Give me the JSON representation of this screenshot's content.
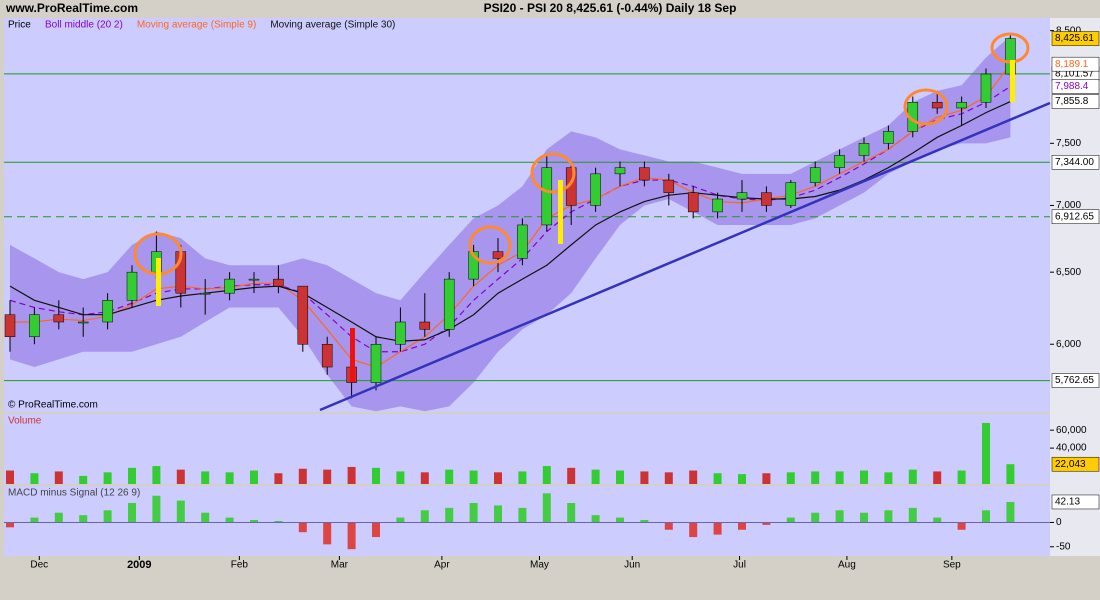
{
  "header": {
    "site": "www.ProRealTime.com",
    "title": "PSI20 - PSI 20    8,425.61 (-0.44%)    Daily  18 Sep"
  },
  "chart_data": [
    {
      "type": "candlestick",
      "price_label": "Price",
      "copyright": "© ProRealTime.com",
      "log_scale": true,
      "ylim": [
        5565,
        8620
      ],
      "yticks": [
        {
          "value": 6000,
          "label": "6,000"
        },
        {
          "value": 6500,
          "label": "6,500"
        },
        {
          "value": 7000,
          "label": "7,000"
        },
        {
          "value": 7500,
          "label": "7,500"
        },
        {
          "value": 8500,
          "label": "8,500"
        }
      ],
      "up_color": "#33cc33",
      "down_color": "#cc3333",
      "open": [
        6200,
        6050,
        6200,
        6150,
        6150,
        6300,
        6500,
        6650,
        6350,
        6350,
        6450,
        6450,
        6400,
        6000,
        5850,
        5750,
        6000,
        6150,
        6100,
        6450,
        6650,
        6600,
        6850,
        7300,
        7000,
        7250,
        7300,
        7200,
        7100,
        6950,
        7050,
        7100,
        7000,
        7180,
        7300,
        7400,
        7500,
        7600,
        7850,
        7800,
        7850,
        8100
      ],
      "high": [
        6300,
        6250,
        6300,
        6250,
        6350,
        6550,
        6800,
        6700,
        6450,
        6500,
        6500,
        6550,
        6400,
        6050,
        5900,
        6050,
        6250,
        6350,
        6500,
        6700,
        6750,
        6900,
        7400,
        7350,
        7300,
        7350,
        7350,
        7250,
        7150,
        7100,
        7200,
        7150,
        7200,
        7350,
        7450,
        7550,
        7650,
        7900,
        7950,
        7900,
        8150,
        8480
      ],
      "low": [
        5950,
        6000,
        6100,
        6050,
        6100,
        6250,
        6450,
        6250,
        6200,
        6300,
        6350,
        6350,
        5950,
        5800,
        5650,
        5700,
        5950,
        6050,
        6050,
        6400,
        6500,
        6550,
        6800,
        6850,
        6950,
        7150,
        7150,
        7000,
        6900,
        6900,
        6950,
        6950,
        6980,
        7150,
        7250,
        7350,
        7450,
        7550,
        7750,
        7650,
        7800,
        8080
      ],
      "close": [
        6050,
        6200,
        6150,
        6150,
        6300,
        6500,
        6650,
        6350,
        6350,
        6450,
        6450,
        6400,
        6000,
        5850,
        5750,
        6000,
        6150,
        6100,
        6450,
        6650,
        6600,
        6850,
        7300,
        7000,
        7250,
        7300,
        7200,
        7100,
        6950,
        7050,
        7100,
        7000,
        7180,
        7300,
        7400,
        7500,
        7600,
        7850,
        7800,
        7850,
        8100,
        8425.61
      ],
      "band": {
        "color": "#a896ee",
        "upper": [
          6700,
          6600,
          6500,
          6450,
          6500,
          6700,
          6800,
          6750,
          6600,
          6550,
          6550,
          6550,
          6600,
          6550,
          6450,
          6350,
          6300,
          6500,
          6700,
          6900,
          7000,
          7150,
          7450,
          7600,
          7550,
          7450,
          7400,
          7350,
          7350,
          7300,
          7250,
          7250,
          7250,
          7350,
          7450,
          7550,
          7650,
          7850,
          7950,
          8000,
          8250,
          8450
        ],
        "lower": [
          5900,
          5850,
          5900,
          5950,
          5950,
          5950,
          6000,
          6050,
          6150,
          6250,
          6250,
          6250,
          6050,
          5800,
          5600,
          5570,
          5600,
          5570,
          5600,
          5750,
          5950,
          6100,
          6200,
          6350,
          6600,
          6850,
          7000,
          7050,
          6950,
          6850,
          6850,
          6850,
          6850,
          6900,
          7000,
          7100,
          7250,
          7350,
          7450,
          7500,
          7500,
          7550
        ]
      },
      "series": [
        {
          "name": "Boll middle (20 2)",
          "color": "#8800cc",
          "dashed": true,
          "values": [
            6300,
            6250,
            6220,
            6200,
            6220,
            6280,
            6350,
            6380,
            6380,
            6400,
            6410,
            6410,
            6350,
            6200,
            6050,
            5950,
            5950,
            6000,
            6120,
            6300,
            6450,
            6600,
            6800,
            6950,
            7050,
            7150,
            7200,
            7200,
            7150,
            7080,
            7050,
            7040,
            7060,
            7120,
            7220,
            7330,
            7450,
            7600,
            7700,
            7750,
            7850,
            7988.4
          ]
        },
        {
          "name": "Moving average (Simple 9)",
          "color": "#ff6622",
          "dashed": false,
          "values": [
            6150,
            6150,
            6170,
            6160,
            6190,
            6270,
            6380,
            6400,
            6380,
            6390,
            6420,
            6420,
            6300,
            6100,
            5900,
            5850,
            5950,
            6050,
            6200,
            6400,
            6550,
            6650,
            6900,
            7000,
            7050,
            7150,
            7220,
            7200,
            7100,
            7030,
            7020,
            7050,
            7080,
            7150,
            7250,
            7350,
            7450,
            7600,
            7720,
            7780,
            7900,
            8189.1
          ]
        },
        {
          "name": "Moving average (Simple 30)",
          "color": "#111111",
          "dashed": false,
          "values": [
            6400,
            6300,
            6250,
            6200,
            6200,
            6250,
            6300,
            6330,
            6350,
            6370,
            6390,
            6400,
            6350,
            6250,
            6150,
            6050,
            6020,
            6030,
            6100,
            6200,
            6350,
            6450,
            6550,
            6700,
            6850,
            6950,
            7030,
            7080,
            7100,
            7080,
            7060,
            7050,
            7050,
            7070,
            7120,
            7200,
            7300,
            7420,
            7550,
            7650,
            7760,
            7855.8
          ]
        }
      ],
      "levels": [
        {
          "value": 8101.57,
          "label": "8,101.57",
          "dashed": false
        },
        {
          "value": 7344,
          "label": "7,344.00",
          "dashed": false
        },
        {
          "value": 6912.65,
          "label": "6,912.65",
          "dashed": true
        },
        {
          "value": 5762.65,
          "label": "5,762.65",
          "dashed": false
        }
      ],
      "value_boxes": [
        {
          "value": 8425.61,
          "label": "8,425.61",
          "color": "#000000",
          "bg": "#ffcc00"
        },
        {
          "value": 8189.1,
          "label": "8,189.1",
          "color": "#ff6622",
          "bg": "#ffffff"
        },
        {
          "value": 7988.4,
          "label": "7,988.4",
          "color": "#8800cc",
          "bg": "#ffffff"
        },
        {
          "value": 7855.8,
          "label": "7,855.8",
          "color": "#000000",
          "bg": "#ffffff"
        }
      ]
    },
    {
      "type": "bar",
      "title": "Volume",
      "ylim": [
        0,
        78000
      ],
      "yticks": [
        {
          "value": 60000,
          "label": "60,000"
        },
        {
          "value": 40000,
          "label": "40,000"
        }
      ],
      "last": {
        "value": 22043,
        "label": "22,043"
      },
      "values": [
        15000,
        12000,
        14000,
        9000,
        13000,
        18000,
        20000,
        16000,
        14000,
        13000,
        15000,
        12000,
        17000,
        16000,
        19000,
        18000,
        14000,
        13000,
        16000,
        15000,
        13000,
        14000,
        20000,
        18000,
        16000,
        15000,
        14000,
        13000,
        15000,
        12000,
        11000,
        12000,
        13000,
        14000,
        14000,
        15000,
        13000,
        16000,
        14000,
        15000,
        68000,
        22043
      ]
    },
    {
      "type": "bar",
      "title": "MACD minus Signal (12 26 9)",
      "ylim": [
        -69,
        75
      ],
      "yticks": [
        0,
        -50
      ],
      "pos_color": "#44cc44",
      "neg_color": "#dd4444",
      "last": {
        "value": 42.13,
        "label": "42.13"
      },
      "values": [
        -10,
        10,
        20,
        15,
        25,
        40,
        55,
        45,
        20,
        10,
        5,
        3,
        -20,
        -45,
        -55,
        -30,
        10,
        25,
        30,
        40,
        35,
        30,
        60,
        40,
        15,
        10,
        5,
        -15,
        -30,
        -25,
        -15,
        -5,
        10,
        20,
        25,
        20,
        25,
        30,
        10,
        -15,
        25,
        42.13
      ],
      "xticks": [
        {
          "value": 1.2,
          "label": "Dec"
        },
        {
          "value": 5.3,
          "label": "2009"
        },
        {
          "value": 9.4,
          "label": "Feb"
        },
        {
          "value": 13.5,
          "label": "Mar"
        },
        {
          "value": 17.7,
          "label": "Apr"
        },
        {
          "value": 21.7,
          "label": "May"
        },
        {
          "value": 25.5,
          "label": "Jun"
        },
        {
          "value": 29.9,
          "label": "Jul"
        },
        {
          "value": 34.3,
          "label": "Aug"
        },
        {
          "value": 38.6,
          "label": "Sep"
        }
      ]
    }
  ]
}
